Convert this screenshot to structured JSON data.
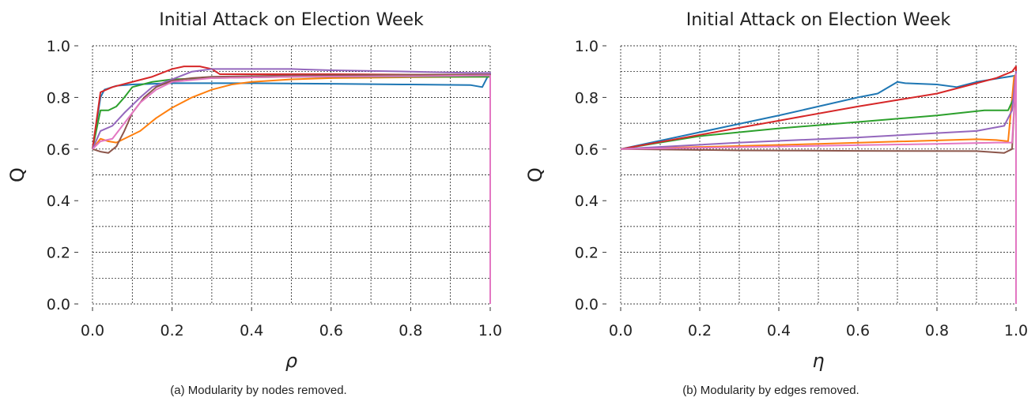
{
  "chart_data": [
    {
      "type": "line",
      "title": "Initial Attack on Election Week",
      "xlabel": "ρ",
      "ylabel": "Q",
      "caption": "(a) Modularity by nodes removed.",
      "xlim": [
        0,
        1
      ],
      "ylim": [
        0,
        1
      ],
      "xticks": [
        {
          "v": 0,
          "label": "0.0"
        },
        {
          "v": 0.2,
          "label": "0.2"
        },
        {
          "v": 0.4,
          "label": "0.4"
        },
        {
          "v": 0.6,
          "label": "0.6"
        },
        {
          "v": 0.8,
          "label": "0.8"
        },
        {
          "v": 1,
          "label": "1.0"
        }
      ],
      "yticks": [
        {
          "v": 0,
          "label": "0.0"
        },
        {
          "v": 0.2,
          "label": "0.2"
        },
        {
          "v": 0.4,
          "label": "0.4"
        },
        {
          "v": 0.6,
          "label": "0.6"
        },
        {
          "v": 0.8,
          "label": "0.8"
        },
        {
          "v": 1,
          "label": "1.0"
        }
      ],
      "grid": true,
      "series": [
        {
          "color": "#1f77b4",
          "points": [
            [
              0,
              0.6
            ],
            [
              0.02,
              0.8
            ],
            [
              0.03,
              0.83
            ],
            [
              0.06,
              0.845
            ],
            [
              0.1,
              0.85
            ],
            [
              0.2,
              0.855
            ],
            [
              0.4,
              0.855
            ],
            [
              0.6,
              0.853
            ],
            [
              0.8,
              0.85
            ],
            [
              0.95,
              0.848
            ],
            [
              0.98,
              0.84
            ],
            [
              0.995,
              0.885
            ],
            [
              1.0,
              0.885
            ],
            [
              1.0,
              0.0
            ]
          ]
        },
        {
          "color": "#ff7f0e",
          "points": [
            [
              0,
              0.6
            ],
            [
              0.02,
              0.64
            ],
            [
              0.04,
              0.63
            ],
            [
              0.06,
              0.625
            ],
            [
              0.08,
              0.64
            ],
            [
              0.12,
              0.67
            ],
            [
              0.16,
              0.72
            ],
            [
              0.2,
              0.76
            ],
            [
              0.25,
              0.8
            ],
            [
              0.3,
              0.83
            ],
            [
              0.35,
              0.85
            ],
            [
              0.4,
              0.86
            ],
            [
              0.5,
              0.87
            ],
            [
              0.6,
              0.875
            ],
            [
              0.8,
              0.878
            ],
            [
              0.95,
              0.88
            ],
            [
              1.0,
              0.88
            ],
            [
              1.0,
              0.0
            ]
          ]
        },
        {
          "color": "#2ca02c",
          "points": [
            [
              0,
              0.6
            ],
            [
              0.02,
              0.75
            ],
            [
              0.04,
              0.75
            ],
            [
              0.06,
              0.765
            ],
            [
              0.08,
              0.8
            ],
            [
              0.1,
              0.84
            ],
            [
              0.15,
              0.86
            ],
            [
              0.2,
              0.87
            ],
            [
              0.3,
              0.875
            ],
            [
              0.5,
              0.88
            ],
            [
              0.7,
              0.88
            ],
            [
              0.9,
              0.88
            ],
            [
              1.0,
              0.88
            ],
            [
              1.0,
              0.0
            ]
          ]
        },
        {
          "color": "#d62728",
          "points": [
            [
              0,
              0.6
            ],
            [
              0.02,
              0.82
            ],
            [
              0.05,
              0.84
            ],
            [
              0.1,
              0.86
            ],
            [
              0.15,
              0.88
            ],
            [
              0.2,
              0.91
            ],
            [
              0.23,
              0.92
            ],
            [
              0.27,
              0.92
            ],
            [
              0.3,
              0.91
            ],
            [
              0.32,
              0.89
            ],
            [
              0.4,
              0.89
            ],
            [
              0.6,
              0.89
            ],
            [
              0.8,
              0.888
            ],
            [
              1.0,
              0.888
            ],
            [
              1.0,
              0.0
            ]
          ]
        },
        {
          "color": "#9467bd",
          "points": [
            [
              0,
              0.6
            ],
            [
              0.02,
              0.67
            ],
            [
              0.05,
              0.69
            ],
            [
              0.08,
              0.74
            ],
            [
              0.12,
              0.8
            ],
            [
              0.15,
              0.84
            ],
            [
              0.2,
              0.87
            ],
            [
              0.25,
              0.9
            ],
            [
              0.3,
              0.91
            ],
            [
              0.4,
              0.91
            ],
            [
              0.5,
              0.91
            ],
            [
              0.6,
              0.905
            ],
            [
              0.8,
              0.9
            ],
            [
              0.95,
              0.895
            ],
            [
              1.0,
              0.895
            ],
            [
              1.0,
              0.0
            ]
          ]
        },
        {
          "color": "#8c564b",
          "points": [
            [
              0,
              0.6
            ],
            [
              0.02,
              0.59
            ],
            [
              0.04,
              0.585
            ],
            [
              0.06,
              0.61
            ],
            [
              0.08,
              0.67
            ],
            [
              0.1,
              0.74
            ],
            [
              0.13,
              0.8
            ],
            [
              0.16,
              0.84
            ],
            [
              0.2,
              0.865
            ],
            [
              0.25,
              0.875
            ],
            [
              0.3,
              0.88
            ],
            [
              0.5,
              0.885
            ],
            [
              0.8,
              0.888
            ],
            [
              1.0,
              0.888
            ],
            [
              1.0,
              0.0
            ]
          ]
        },
        {
          "color": "#e377c2",
          "points": [
            [
              0,
              0.6
            ],
            [
              0.02,
              0.63
            ],
            [
              0.05,
              0.64
            ],
            [
              0.08,
              0.7
            ],
            [
              0.12,
              0.78
            ],
            [
              0.16,
              0.83
            ],
            [
              0.2,
              0.86
            ],
            [
              0.3,
              0.875
            ],
            [
              0.5,
              0.88
            ],
            [
              0.8,
              0.882
            ],
            [
              0.98,
              0.885
            ],
            [
              1.0,
              0.885
            ],
            [
              1.0,
              0.0
            ]
          ]
        }
      ]
    },
    {
      "type": "line",
      "title": "Initial Attack on Election Week",
      "xlabel": "η",
      "ylabel": "Q",
      "caption": "(b) Modularity by edges removed.",
      "xlim": [
        0,
        1
      ],
      "ylim": [
        0,
        1
      ],
      "xticks": [
        {
          "v": 0,
          "label": "0.0"
        },
        {
          "v": 0.2,
          "label": "0.2"
        },
        {
          "v": 0.4,
          "label": "0.4"
        },
        {
          "v": 0.6,
          "label": "0.6"
        },
        {
          "v": 0.8,
          "label": "0.8"
        },
        {
          "v": 1,
          "label": "1.0"
        }
      ],
      "yticks": [
        {
          "v": 0,
          "label": "0.0"
        },
        {
          "v": 0.2,
          "label": "0.2"
        },
        {
          "v": 0.4,
          "label": "0.4"
        },
        {
          "v": 0.6,
          "label": "0.6"
        },
        {
          "v": 0.8,
          "label": "0.8"
        },
        {
          "v": 1,
          "label": "1.0"
        }
      ],
      "grid": true,
      "series": [
        {
          "color": "#1f77b4",
          "points": [
            [
              0,
              0.6
            ],
            [
              0.2,
              0.665
            ],
            [
              0.4,
              0.73
            ],
            [
              0.6,
              0.8
            ],
            [
              0.65,
              0.815
            ],
            [
              0.7,
              0.86
            ],
            [
              0.72,
              0.855
            ],
            [
              0.8,
              0.85
            ],
            [
              0.85,
              0.84
            ],
            [
              0.9,
              0.86
            ],
            [
              1.0,
              0.885
            ],
            [
              1.0,
              0.0
            ]
          ]
        },
        {
          "color": "#ff7f0e",
          "points": [
            [
              0,
              0.6
            ],
            [
              0.5,
              0.62
            ],
            [
              0.9,
              0.638
            ],
            [
              0.95,
              0.635
            ],
            [
              0.98,
              0.63
            ],
            [
              0.995,
              0.88
            ],
            [
              1.0,
              0.89
            ],
            [
              1.0,
              0.0
            ]
          ]
        },
        {
          "color": "#2ca02c",
          "points": [
            [
              0,
              0.6
            ],
            [
              0.2,
              0.65
            ],
            [
              0.4,
              0.68
            ],
            [
              0.6,
              0.705
            ],
            [
              0.8,
              0.73
            ],
            [
              0.92,
              0.75
            ],
            [
              0.98,
              0.75
            ],
            [
              0.995,
              0.8
            ],
            [
              1.0,
              0.89
            ],
            [
              1.0,
              0.0
            ]
          ]
        },
        {
          "color": "#d62728",
          "points": [
            [
              0,
              0.6
            ],
            [
              0.2,
              0.655
            ],
            [
              0.4,
              0.71
            ],
            [
              0.6,
              0.765
            ],
            [
              0.8,
              0.815
            ],
            [
              0.95,
              0.875
            ],
            [
              0.99,
              0.9
            ],
            [
              1.0,
              0.92
            ],
            [
              1.0,
              0.0
            ]
          ]
        },
        {
          "color": "#9467bd",
          "points": [
            [
              0,
              0.6
            ],
            [
              0.3,
              0.625
            ],
            [
              0.6,
              0.645
            ],
            [
              0.9,
              0.67
            ],
            [
              0.97,
              0.69
            ],
            [
              0.99,
              0.75
            ],
            [
              1.0,
              0.9
            ],
            [
              1.0,
              0.0
            ]
          ]
        },
        {
          "color": "#8c564b",
          "points": [
            [
              0,
              0.6
            ],
            [
              0.3,
              0.595
            ],
            [
              0.6,
              0.593
            ],
            [
              0.9,
              0.592
            ],
            [
              0.97,
              0.585
            ],
            [
              0.99,
              0.6
            ],
            [
              1.0,
              0.89
            ],
            [
              1.0,
              0.0
            ]
          ]
        },
        {
          "color": "#e377c2",
          "points": [
            [
              0,
              0.6
            ],
            [
              0.4,
              0.61
            ],
            [
              0.8,
              0.62
            ],
            [
              0.95,
              0.625
            ],
            [
              0.99,
              0.625
            ],
            [
              1.0,
              0.89
            ],
            [
              1.0,
              0.0
            ]
          ]
        }
      ]
    }
  ]
}
